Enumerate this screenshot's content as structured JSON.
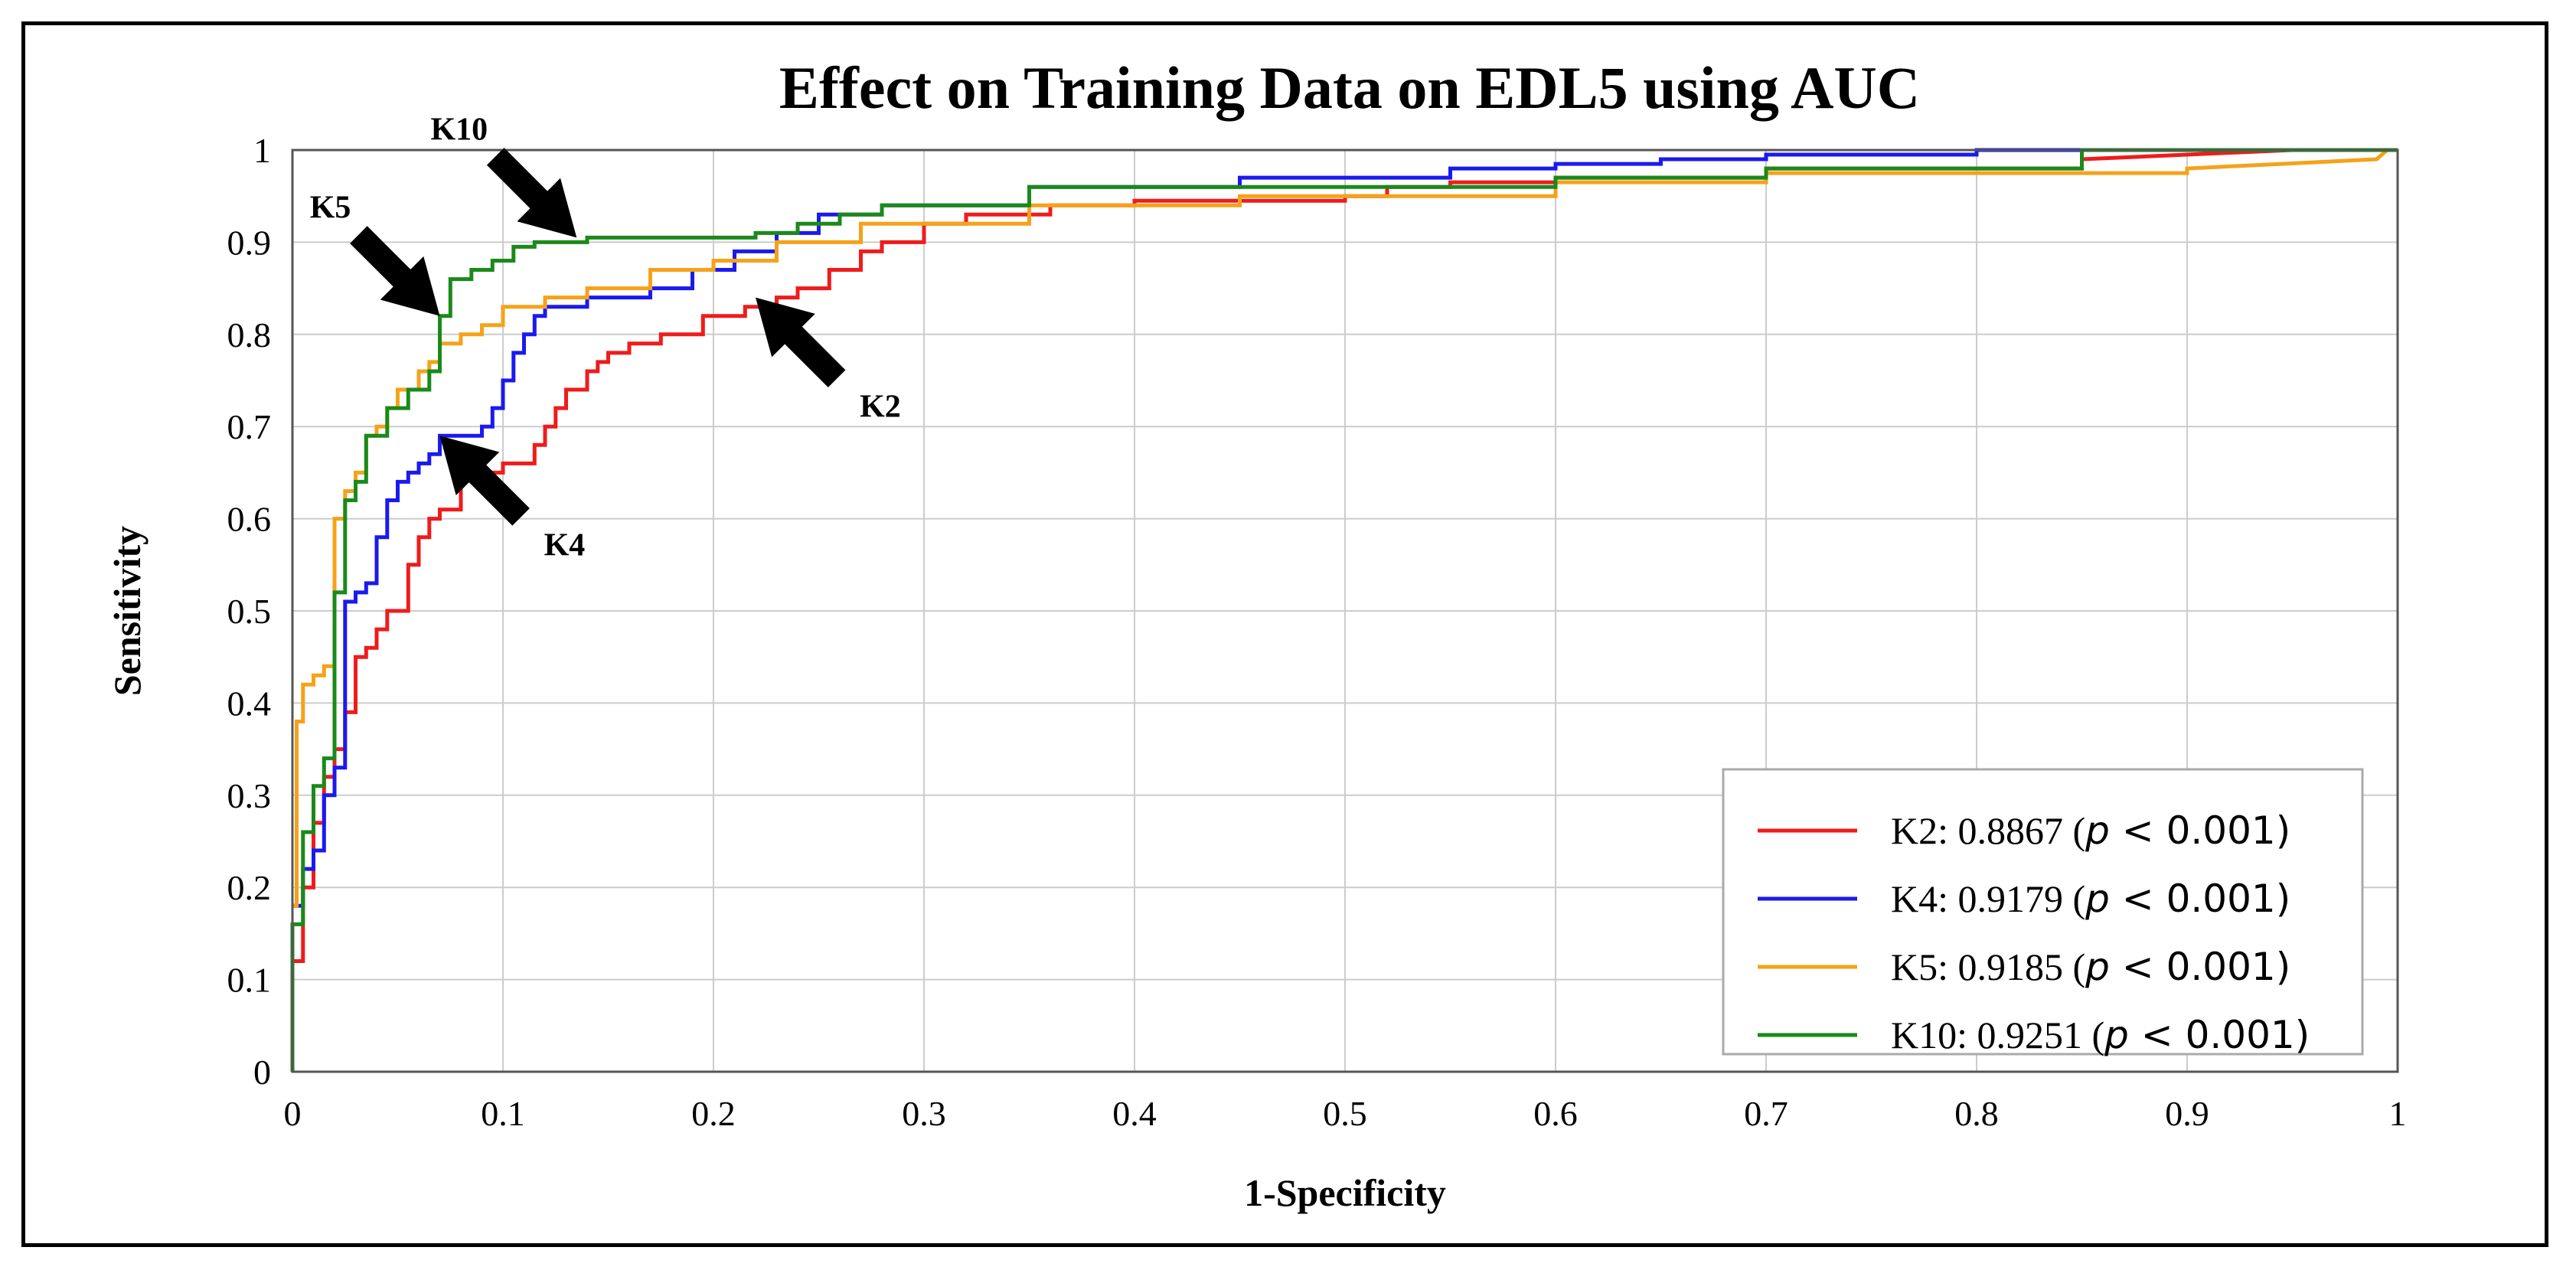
{
  "colors": {
    "K2": "#ee1c1c",
    "K4": "#1a1aee",
    "K5": "#f5a21a",
    "K10": "#1a8a1a",
    "grid": "#cccccc",
    "axis": "#444444",
    "arrow": "#000000"
  },
  "chart_data": {
    "type": "line",
    "title": "Effect on Training Data on EDL5 using AUC",
    "xlabel": "1-Specificity",
    "ylabel": "Sensitivity",
    "xlim": [
      0,
      1
    ],
    "ylim": [
      0,
      1
    ],
    "grid": true,
    "legend_position": "bottom-right",
    "x_ticks": [
      "0",
      "0.1",
      "0.2",
      "0.3",
      "0.4",
      "0.5",
      "0.6",
      "0.7",
      "0.8",
      "0.9",
      "1"
    ],
    "y_ticks": [
      "0",
      "0.1",
      "0.2",
      "0.3",
      "0.4",
      "0.5",
      "0.6",
      "0.7",
      "0.8",
      "0.9",
      "1"
    ],
    "series": [
      {
        "name": "K2",
        "legend_prefix": "K2: 0.8867 (",
        "legend_p": "p",
        "legend_suffix": " < 0.001)",
        "color_key": "K2",
        "x": [
          0,
          0.005,
          0.005,
          0.01,
          0.01,
          0.015,
          0.015,
          0.02,
          0.02,
          0.025,
          0.025,
          0.03,
          0.03,
          0.035,
          0.035,
          0.04,
          0.04,
          0.045,
          0.045,
          0.055,
          0.055,
          0.06,
          0.06,
          0.065,
          0.065,
          0.07,
          0.07,
          0.08,
          0.08,
          0.1,
          0.1,
          0.115,
          0.115,
          0.12,
          0.12,
          0.125,
          0.125,
          0.13,
          0.13,
          0.14,
          0.14,
          0.145,
          0.145,
          0.15,
          0.15,
          0.16,
          0.16,
          0.175,
          0.175,
          0.195,
          0.195,
          0.215,
          0.215,
          0.23,
          0.23,
          0.24,
          0.24,
          0.255,
          0.255,
          0.27,
          0.27,
          0.28,
          0.28,
          0.3,
          0.3,
          0.32,
          0.32,
          0.36,
          0.36,
          0.4,
          0.4,
          0.5,
          0.5,
          0.52,
          0.52,
          0.55,
          0.55,
          0.6,
          0.6,
          0.7,
          0.7,
          0.85,
          0.85,
          0.95,
          1.0
        ],
        "y": [
          0.12,
          0.12,
          0.2,
          0.2,
          0.27,
          0.27,
          0.32,
          0.32,
          0.35,
          0.35,
          0.39,
          0.39,
          0.45,
          0.45,
          0.46,
          0.46,
          0.48,
          0.48,
          0.5,
          0.5,
          0.55,
          0.55,
          0.58,
          0.58,
          0.6,
          0.6,
          0.61,
          0.61,
          0.65,
          0.65,
          0.66,
          0.66,
          0.68,
          0.68,
          0.7,
          0.7,
          0.72,
          0.72,
          0.74,
          0.74,
          0.76,
          0.76,
          0.77,
          0.77,
          0.78,
          0.78,
          0.79,
          0.79,
          0.8,
          0.8,
          0.82,
          0.82,
          0.83,
          0.83,
          0.84,
          0.84,
          0.85,
          0.85,
          0.87,
          0.87,
          0.89,
          0.89,
          0.9,
          0.9,
          0.92,
          0.92,
          0.93,
          0.93,
          0.94,
          0.94,
          0.945,
          0.945,
          0.95,
          0.95,
          0.96,
          0.96,
          0.965,
          0.965,
          0.97,
          0.97,
          0.98,
          0.98,
          0.99,
          1.0,
          1.0
        ]
      },
      {
        "name": "K4",
        "legend_prefix": "K4: 0.9179 (",
        "legend_p": "p",
        "legend_suffix": " < 0.001)",
        "color_key": "K4",
        "x": [
          0,
          0.005,
          0.005,
          0.01,
          0.01,
          0.015,
          0.015,
          0.02,
          0.02,
          0.025,
          0.025,
          0.03,
          0.03,
          0.035,
          0.035,
          0.04,
          0.04,
          0.045,
          0.045,
          0.05,
          0.05,
          0.055,
          0.055,
          0.06,
          0.06,
          0.065,
          0.065,
          0.07,
          0.07,
          0.09,
          0.09,
          0.095,
          0.095,
          0.1,
          0.1,
          0.105,
          0.105,
          0.11,
          0.11,
          0.115,
          0.115,
          0.12,
          0.12,
          0.14,
          0.14,
          0.17,
          0.17,
          0.19,
          0.19,
          0.21,
          0.21,
          0.23,
          0.23,
          0.25,
          0.25,
          0.28,
          0.28,
          0.35,
          0.35,
          0.45,
          0.45,
          0.55,
          0.55,
          0.6,
          0.6,
          0.65,
          0.65,
          0.7,
          0.7,
          0.8,
          0.8,
          1.0
        ],
        "y": [
          0.18,
          0.18,
          0.22,
          0.22,
          0.24,
          0.24,
          0.3,
          0.3,
          0.33,
          0.33,
          0.51,
          0.51,
          0.52,
          0.52,
          0.53,
          0.53,
          0.58,
          0.58,
          0.62,
          0.62,
          0.64,
          0.64,
          0.65,
          0.65,
          0.66,
          0.66,
          0.67,
          0.67,
          0.69,
          0.69,
          0.7,
          0.7,
          0.72,
          0.72,
          0.75,
          0.75,
          0.78,
          0.78,
          0.8,
          0.8,
          0.82,
          0.82,
          0.83,
          0.83,
          0.84,
          0.84,
          0.85,
          0.85,
          0.87,
          0.87,
          0.89,
          0.89,
          0.91,
          0.91,
          0.93,
          0.93,
          0.94,
          0.94,
          0.96,
          0.96,
          0.97,
          0.97,
          0.98,
          0.98,
          0.985,
          0.985,
          0.99,
          0.99,
          0.995,
          0.995,
          1.0,
          1.0
        ]
      },
      {
        "name": "K5",
        "legend_prefix": "K5: 0.9185 (",
        "legend_p": "p",
        "legend_suffix": " < 0.001)",
        "color_key": "K5",
        "x": [
          0,
          0.002,
          0.002,
          0.005,
          0.005,
          0.01,
          0.01,
          0.015,
          0.015,
          0.02,
          0.02,
          0.025,
          0.025,
          0.03,
          0.03,
          0.035,
          0.035,
          0.04,
          0.04,
          0.045,
          0.045,
          0.05,
          0.05,
          0.06,
          0.06,
          0.065,
          0.065,
          0.07,
          0.07,
          0.08,
          0.08,
          0.09,
          0.09,
          0.1,
          0.1,
          0.12,
          0.12,
          0.14,
          0.14,
          0.17,
          0.17,
          0.2,
          0.2,
          0.23,
          0.23,
          0.27,
          0.27,
          0.35,
          0.35,
          0.45,
          0.45,
          0.6,
          0.6,
          0.7,
          0.7,
          0.9,
          0.9,
          0.99,
          0.995,
          1.0
        ],
        "y": [
          0.18,
          0.18,
          0.38,
          0.38,
          0.42,
          0.42,
          0.43,
          0.43,
          0.44,
          0.44,
          0.6,
          0.6,
          0.63,
          0.63,
          0.65,
          0.65,
          0.69,
          0.69,
          0.7,
          0.7,
          0.72,
          0.72,
          0.74,
          0.74,
          0.76,
          0.76,
          0.77,
          0.77,
          0.79,
          0.79,
          0.8,
          0.8,
          0.81,
          0.81,
          0.83,
          0.83,
          0.84,
          0.84,
          0.85,
          0.85,
          0.87,
          0.87,
          0.88,
          0.88,
          0.9,
          0.9,
          0.92,
          0.92,
          0.94,
          0.94,
          0.95,
          0.95,
          0.965,
          0.965,
          0.975,
          0.975,
          0.98,
          0.99,
          1.0,
          1.0
        ]
      },
      {
        "name": "K10",
        "legend_prefix": "K10: 0.9251 (",
        "legend_p": "p",
        "legend_suffix": " < 0.001)",
        "color_key": "K10",
        "x": [
          0,
          0,
          0.005,
          0.005,
          0.01,
          0.01,
          0.015,
          0.015,
          0.02,
          0.02,
          0.025,
          0.025,
          0.03,
          0.03,
          0.035,
          0.035,
          0.045,
          0.045,
          0.055,
          0.055,
          0.065,
          0.065,
          0.07,
          0.07,
          0.075,
          0.075,
          0.085,
          0.085,
          0.095,
          0.095,
          0.105,
          0.105,
          0.115,
          0.115,
          0.14,
          0.14,
          0.22,
          0.22,
          0.24,
          0.24,
          0.26,
          0.26,
          0.28,
          0.28,
          0.35,
          0.35,
          0.6,
          0.6,
          0.7,
          0.7,
          0.85,
          0.85,
          1.0
        ],
        "y": [
          0,
          0.16,
          0.16,
          0.26,
          0.26,
          0.31,
          0.31,
          0.34,
          0.34,
          0.52,
          0.52,
          0.62,
          0.62,
          0.64,
          0.64,
          0.69,
          0.69,
          0.72,
          0.72,
          0.74,
          0.74,
          0.76,
          0.76,
          0.82,
          0.82,
          0.86,
          0.86,
          0.87,
          0.87,
          0.88,
          0.88,
          0.895,
          0.895,
          0.9,
          0.9,
          0.905,
          0.905,
          0.91,
          0.91,
          0.92,
          0.92,
          0.93,
          0.93,
          0.94,
          0.94,
          0.96,
          0.96,
          0.97,
          0.97,
          0.98,
          0.98,
          1.0,
          1.0
        ]
      }
    ],
    "annotations": [
      {
        "label": "K10",
        "tip": [
          0.135,
          0.905
        ],
        "tail_dir": "up-left"
      },
      {
        "label": "K5",
        "tip": [
          0.07,
          0.82
        ],
        "tail_dir": "up-left"
      },
      {
        "label": "K2",
        "tip": [
          0.22,
          0.84
        ],
        "tail_dir": "down-right"
      },
      {
        "label": "K4",
        "tip": [
          0.07,
          0.69
        ],
        "tail_dir": "down-right"
      }
    ]
  }
}
